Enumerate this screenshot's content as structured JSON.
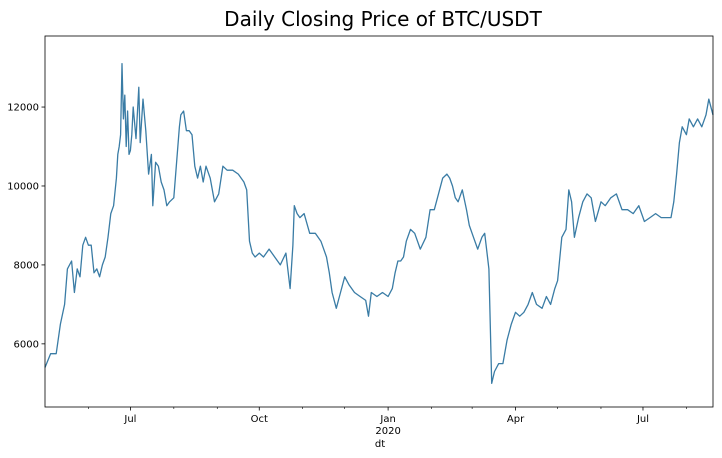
{
  "chart_data": {
    "type": "line",
    "title": "Daily Closing Price of BTC/USDT",
    "xlabel": "dt",
    "ylabel": "",
    "x_range": [
      "2019-05-01",
      "2020-08-20"
    ],
    "ylim": [
      4400,
      13800
    ],
    "grid": false,
    "legend": "none",
    "line_color": "#3a7ca5",
    "x_ticks": [
      {
        "date": "2019-07-01",
        "label": "Jul",
        "sublabel": ""
      },
      {
        "date": "2019-10-01",
        "label": "Oct",
        "sublabel": ""
      },
      {
        "date": "2020-01-01",
        "label": "Jan",
        "sublabel": "2020"
      },
      {
        "date": "2020-04-01",
        "label": "Apr",
        "sublabel": ""
      },
      {
        "date": "2020-07-01",
        "label": "Jul",
        "sublabel": ""
      }
    ],
    "x_minor_ticks": [
      "2019-06-01",
      "2019-08-01",
      "2019-09-01",
      "2019-11-01",
      "2019-12-01",
      "2020-02-01",
      "2020-03-01",
      "2020-05-01",
      "2020-06-01",
      "2020-08-01"
    ],
    "y_ticks": [
      6000,
      8000,
      10000,
      12000
    ],
    "series": [
      {
        "x": [
          "2019-05-01",
          "2019-05-05",
          "2019-05-09",
          "2019-05-12",
          "2019-05-15",
          "2019-05-17",
          "2019-05-20",
          "2019-05-22",
          "2019-05-24",
          "2019-05-26",
          "2019-05-28",
          "2019-05-30",
          "2019-06-01",
          "2019-06-03",
          "2019-06-05",
          "2019-06-07",
          "2019-06-09",
          "2019-06-11",
          "2019-06-13",
          "2019-06-15",
          "2019-06-17",
          "2019-06-19",
          "2019-06-21",
          "2019-06-22",
          "2019-06-23",
          "2019-06-24",
          "2019-06-25",
          "2019-06-26",
          "2019-06-27",
          "2019-06-28",
          "2019-06-29",
          "2019-06-30",
          "2019-07-01",
          "2019-07-02",
          "2019-07-03",
          "2019-07-05",
          "2019-07-07",
          "2019-07-08",
          "2019-07-10",
          "2019-07-12",
          "2019-07-14",
          "2019-07-16",
          "2019-07-17",
          "2019-07-19",
          "2019-07-21",
          "2019-07-23",
          "2019-07-25",
          "2019-07-27",
          "2019-07-29",
          "2019-08-01",
          "2019-08-03",
          "2019-08-05",
          "2019-08-06",
          "2019-08-08",
          "2019-08-10",
          "2019-08-12",
          "2019-08-14",
          "2019-08-16",
          "2019-08-18",
          "2019-08-20",
          "2019-08-22",
          "2019-08-24",
          "2019-08-27",
          "2019-08-30",
          "2019-09-02",
          "2019-09-05",
          "2019-09-08",
          "2019-09-12",
          "2019-09-16",
          "2019-09-20",
          "2019-09-22",
          "2019-09-24",
          "2019-09-26",
          "2019-09-28",
          "2019-10-01",
          "2019-10-04",
          "2019-10-08",
          "2019-10-12",
          "2019-10-16",
          "2019-10-20",
          "2019-10-23",
          "2019-10-25",
          "2019-10-26",
          "2019-10-28",
          "2019-10-30",
          "2019-11-02",
          "2019-11-06",
          "2019-11-10",
          "2019-11-14",
          "2019-11-18",
          "2019-11-20",
          "2019-11-22",
          "2019-11-25",
          "2019-11-28",
          "2019-12-01",
          "2019-12-04",
          "2019-12-08",
          "2019-12-12",
          "2019-12-16",
          "2019-12-18",
          "2019-12-20",
          "2019-12-24",
          "2019-12-28",
          "2020-01-01",
          "2020-01-04",
          "2020-01-06",
          "2020-01-08",
          "2020-01-10",
          "2020-01-12",
          "2020-01-14",
          "2020-01-17",
          "2020-01-20",
          "2020-01-24",
          "2020-01-28",
          "2020-01-31",
          "2020-02-03",
          "2020-02-06",
          "2020-02-09",
          "2020-02-12",
          "2020-02-14",
          "2020-02-16",
          "2020-02-18",
          "2020-02-20",
          "2020-02-23",
          "2020-02-26",
          "2020-02-28",
          "2020-03-02",
          "2020-03-05",
          "2020-03-08",
          "2020-03-10",
          "2020-03-12",
          "2020-03-13",
          "2020-03-15",
          "2020-03-17",
          "2020-03-20",
          "2020-03-23",
          "2020-03-26",
          "2020-03-29",
          "2020-04-01",
          "2020-04-04",
          "2020-04-07",
          "2020-04-10",
          "2020-04-13",
          "2020-04-16",
          "2020-04-20",
          "2020-04-23",
          "2020-04-26",
          "2020-04-29",
          "2020-05-01",
          "2020-05-04",
          "2020-05-07",
          "2020-05-09",
          "2020-05-11",
          "2020-05-13",
          "2020-05-16",
          "2020-05-19",
          "2020-05-22",
          "2020-05-25",
          "2020-05-28",
          "2020-06-01",
          "2020-06-04",
          "2020-06-08",
          "2020-06-12",
          "2020-06-16",
          "2020-06-20",
          "2020-06-24",
          "2020-06-28",
          "2020-07-02",
          "2020-07-06",
          "2020-07-10",
          "2020-07-14",
          "2020-07-18",
          "2020-07-21",
          "2020-07-23",
          "2020-07-25",
          "2020-07-27",
          "2020-07-29",
          "2020-08-01",
          "2020-08-03",
          "2020-08-06",
          "2020-08-09",
          "2020-08-12",
          "2020-08-15",
          "2020-08-17",
          "2020-08-20"
        ],
        "values": [
          5400,
          5750,
          5750,
          6500,
          7000,
          7900,
          8100,
          7300,
          7900,
          7700,
          8500,
          8700,
          8500,
          8500,
          7800,
          7900,
          7700,
          8000,
          8200,
          8700,
          9300,
          9500,
          10200,
          10800,
          11000,
          11300,
          13100,
          11700,
          12300,
          11000,
          11900,
          10800,
          10900,
          11300,
          12000,
          11200,
          12500,
          11100,
          12200,
          11400,
          10300,
          10800,
          9500,
          10600,
          10500,
          10100,
          9900,
          9500,
          9600,
          9700,
          10600,
          11500,
          11800,
          11900,
          11400,
          11400,
          11300,
          10500,
          10200,
          10500,
          10100,
          10500,
          10200,
          9600,
          9800,
          10500,
          10400,
          10400,
          10300,
          10100,
          9900,
          8600,
          8300,
          8200,
          8300,
          8200,
          8400,
          8200,
          8000,
          8300,
          7400,
          8500,
          9500,
          9300,
          9200,
          9300,
          8800,
          8800,
          8600,
          8200,
          7800,
          7300,
          6900,
          7300,
          7700,
          7500,
          7300,
          7200,
          7100,
          6700,
          7300,
          7200,
          7300,
          7200,
          7400,
          7800,
          8100,
          8100,
          8200,
          8600,
          8900,
          8800,
          8400,
          8700,
          9400,
          9400,
          9800,
          10200,
          10300,
          10200,
          10000,
          9700,
          9600,
          9900,
          9400,
          9000,
          8700,
          8400,
          8700,
          8800,
          8200,
          7900,
          5000,
          5300,
          5500,
          5500,
          6100,
          6500,
          6800,
          6700,
          6800,
          7000,
          7300,
          7000,
          6900,
          7200,
          7000,
          7400,
          7600,
          8700,
          8900,
          9900,
          9600,
          8700,
          9200,
          9600,
          9800,
          9700,
          9100,
          9600,
          9500,
          9700,
          9800,
          9400,
          9400,
          9300,
          9500,
          9100,
          9200,
          9300,
          9200,
          9200,
          9200,
          9600,
          10300,
          11100,
          11500,
          11300,
          11700,
          11500,
          11700,
          11500,
          11800,
          12200,
          11800
        ]
      }
    ]
  }
}
